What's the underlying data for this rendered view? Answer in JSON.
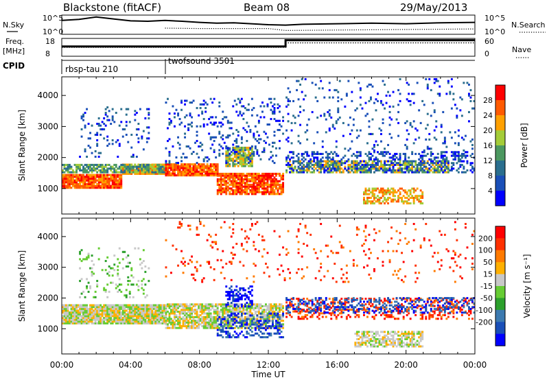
{
  "header": {
    "station": "Blackstone (fitACF)",
    "beam": "Beam 08",
    "date": "29/May/2013"
  },
  "chart_data": [
    {
      "id": "noise",
      "type": "line",
      "left_label": "N.Sky",
      "right_label": "N.Search",
      "right_legend_style": "dotted",
      "y_ticks": [
        "10^5",
        "10^0"
      ],
      "x_range_hours": [
        0,
        24
      ],
      "series": [
        {
          "style": "solid",
          "x": [
            0,
            1,
            2,
            3,
            4,
            5,
            6,
            7,
            8,
            9,
            10,
            11,
            12,
            13,
            14,
            16,
            18,
            20,
            22,
            24
          ],
          "y": [
            0.72,
            0.78,
            0.9,
            0.8,
            0.7,
            0.68,
            0.72,
            0.68,
            0.62,
            0.58,
            0.6,
            0.55,
            0.5,
            0.48,
            0.52,
            0.55,
            0.58,
            0.55,
            0.6,
            0.62
          ]
        },
        {
          "style": "dotted",
          "x": [
            6,
            8,
            10,
            12,
            13,
            16,
            20,
            24
          ],
          "y": [
            0.32,
            0.3,
            0.3,
            0.3,
            0.2,
            0.22,
            0.25,
            0.28
          ]
        }
      ]
    },
    {
      "id": "frequency",
      "type": "line",
      "left_label_lines": [
        "Freq.",
        "[MHz]"
      ],
      "right_label": "Nave",
      "right_legend_style": "dotted",
      "left_ticks": [
        "18",
        "8"
      ],
      "right_ticks": [
        "60",
        "0"
      ],
      "series": [
        {
          "name": "Freq.",
          "x": [
            0,
            13,
            13,
            24
          ],
          "y": [
            0.55,
            0.55,
            0.9,
            0.9
          ]
        },
        {
          "name": "Nave",
          "x": [
            0,
            13,
            13,
            24
          ],
          "y": [
            0.5,
            0.5,
            0.75,
            0.75
          ],
          "style": "dotted"
        }
      ]
    },
    {
      "id": "cpid",
      "type": "table",
      "label": "CPID",
      "segments": [
        {
          "name": "rbsp-tau 210",
          "start": 0,
          "end": 6
        },
        {
          "name": "twofsound 3501",
          "start": 6,
          "end": 24
        }
      ]
    },
    {
      "id": "power",
      "type": "heatmap",
      "ylabel": "Slant Range [km]",
      "yticks": [
        1000,
        2000,
        3000,
        4000
      ],
      "ylim": [
        180,
        4600
      ],
      "colorbar": {
        "label": "Power [dB]",
        "ticks": [
          "4",
          "8",
          "12",
          "16",
          "20",
          "24",
          "28"
        ],
        "colors": [
          "#0000ff",
          "#1a4fb8",
          "#2a6e8e",
          "#4c9860",
          "#a4cc38",
          "#ffa000",
          "#ff5a00",
          "#ff0000"
        ]
      },
      "bands": [
        {
          "x0": 0,
          "x1": 3.5,
          "y0": 1000,
          "y1": 1450,
          "c": 6,
          "density": 0.95
        },
        {
          "x0": 3.5,
          "x1": 6,
          "y0": 1450,
          "y1": 1750,
          "c": 5,
          "density": 0.9
        },
        {
          "x0": 0,
          "x1": 6,
          "y0": 1500,
          "y1": 1750,
          "c": 3,
          "density": 0.7
        },
        {
          "x0": 6,
          "x1": 9,
          "y0": 1400,
          "y1": 1800,
          "c": 6,
          "density": 0.9
        },
        {
          "x0": 9,
          "x1": 12.8,
          "y0": 800,
          "y1": 1500,
          "c": 6,
          "density": 0.85
        },
        {
          "x0": 9.5,
          "x1": 11,
          "y0": 1700,
          "y1": 2300,
          "c": 4,
          "density": 0.8
        },
        {
          "x0": 6,
          "x1": 12.8,
          "y0": 1800,
          "y1": 3900,
          "c": 1,
          "density": 0.12
        },
        {
          "x0": 13,
          "x1": 22.5,
          "y0": 1500,
          "y1": 1900,
          "c": 4,
          "density": 0.6
        },
        {
          "x0": 13,
          "x1": 24,
          "y0": 1500,
          "y1": 2200,
          "c": 1,
          "density": 0.35
        },
        {
          "x0": 17.5,
          "x1": 21,
          "y0": 500,
          "y1": 1000,
          "c": 5,
          "density": 0.55
        },
        {
          "x0": 13,
          "x1": 24,
          "y0": 2200,
          "y1": 4500,
          "c": 1,
          "density": 0.06
        },
        {
          "x0": 1,
          "x1": 5,
          "y0": 2000,
          "y1": 3600,
          "c": 1,
          "density": 0.1
        }
      ]
    },
    {
      "id": "velocity",
      "type": "heatmap",
      "xlabel": "Time UT",
      "ylabel": "Slant Range [km]",
      "xticks": [
        "00:00",
        "04:00",
        "08:00",
        "12:00",
        "16:00",
        "20:00",
        "00:00"
      ],
      "yticks": [
        1000,
        2000,
        3000,
        4000
      ],
      "ylim": [
        180,
        4600
      ],
      "colorbar": {
        "label": "Velocity [m s⁻¹]",
        "ticks": [
          "200",
          "100",
          "50",
          "15",
          "-15",
          "-50",
          "-100",
          "-200"
        ],
        "colors": [
          "#0000ff",
          "#1a4fb8",
          "#3c7ab0",
          "#2ca02c",
          "#66cc33",
          "#c8c8c8",
          "#ffb000",
          "#ff7a00",
          "#ff3000",
          "#ff0000"
        ]
      },
      "bands": [
        {
          "x0": 0,
          "x1": 6,
          "y0": 1150,
          "y1": 1750,
          "c": 5,
          "density": 0.95
        },
        {
          "x0": 6,
          "x1": 12.8,
          "y0": 1000,
          "y1": 1800,
          "c": 5,
          "density": 0.75
        },
        {
          "x0": 9,
          "x1": 12.8,
          "y0": 700,
          "y1": 1500,
          "c": 1,
          "density": 0.4
        },
        {
          "x0": 9.5,
          "x1": 11,
          "y0": 1700,
          "y1": 2400,
          "c": 0,
          "density": 0.4
        },
        {
          "x0": 13,
          "x1": 24,
          "y0": 1300,
          "y1": 2000,
          "c": 8,
          "density": 0.3
        },
        {
          "x0": 13,
          "x1": 24,
          "y0": 1500,
          "y1": 2000,
          "c": 1,
          "density": 0.3
        },
        {
          "x0": 17,
          "x1": 21,
          "y0": 400,
          "y1": 900,
          "c": 5,
          "density": 0.6
        },
        {
          "x0": 6,
          "x1": 24,
          "y0": 2500,
          "y1": 4500,
          "c": 8,
          "density": 0.05
        },
        {
          "x0": 1,
          "x1": 5,
          "y0": 2000,
          "y1": 3600,
          "c": 4,
          "density": 0.1
        }
      ]
    }
  ]
}
